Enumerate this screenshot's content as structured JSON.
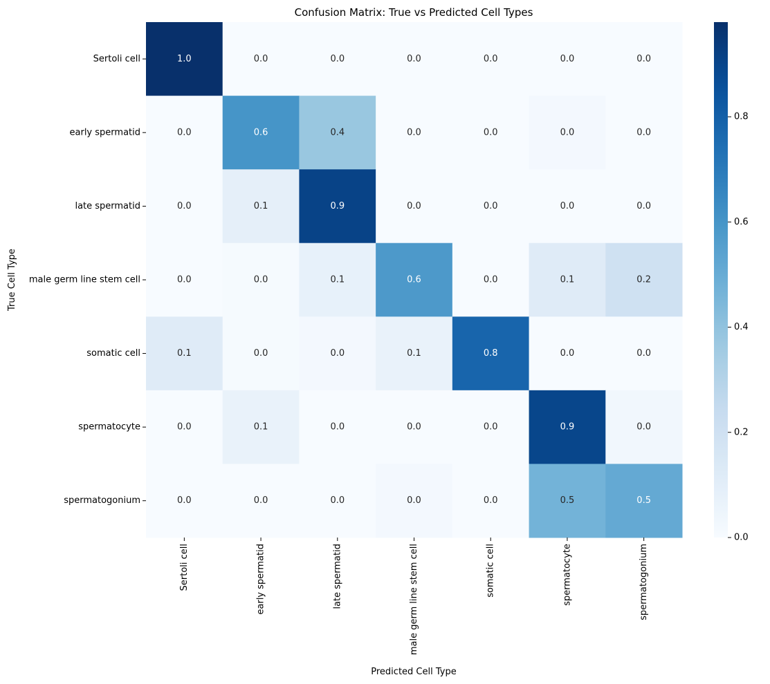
{
  "chart_data": {
    "type": "heatmap",
    "title": "Confusion Matrix: True vs Predicted Cell Types",
    "xlabel": "Predicted Cell Type",
    "ylabel": "True Cell Type",
    "row_labels": [
      "Sertoli cell",
      "early spermatid",
      "late spermatid",
      "male germ line stem cell",
      "somatic cell",
      "spermatocyte",
      "spermatogonium"
    ],
    "col_labels": [
      "Sertoli cell",
      "early spermatid",
      "late spermatid",
      "male germ line stem cell",
      "somatic cell",
      "spermatocyte",
      "spermatogonium"
    ],
    "values": [
      [
        0.98,
        0.0,
        0.0,
        0.0,
        0.0,
        0.0,
        0.0
      ],
      [
        0.0,
        0.6,
        0.38,
        0.0,
        0.0,
        0.02,
        0.0
      ],
      [
        0.0,
        0.09,
        0.91,
        0.0,
        0.0,
        0.0,
        0.0
      ],
      [
        0.0,
        0.01,
        0.08,
        0.58,
        0.0,
        0.12,
        0.2
      ],
      [
        0.12,
        0.01,
        0.02,
        0.07,
        0.78,
        0.0,
        0.0
      ],
      [
        0.0,
        0.07,
        0.0,
        0.0,
        0.0,
        0.9,
        0.03
      ],
      [
        0.0,
        0.0,
        0.0,
        0.02,
        0.0,
        0.47,
        0.51
      ]
    ],
    "annotations": [
      [
        "1.0",
        "0.0",
        "0.0",
        "0.0",
        "0.0",
        "0.0",
        "0.0"
      ],
      [
        "0.0",
        "0.6",
        "0.4",
        "0.0",
        "0.0",
        "0.0",
        "0.0"
      ],
      [
        "0.0",
        "0.1",
        "0.9",
        "0.0",
        "0.0",
        "0.0",
        "0.0"
      ],
      [
        "0.0",
        "0.0",
        "0.1",
        "0.6",
        "0.0",
        "0.1",
        "0.2"
      ],
      [
        "0.1",
        "0.0",
        "0.0",
        "0.1",
        "0.8",
        "0.0",
        "0.0"
      ],
      [
        "0.0",
        "0.1",
        "0.0",
        "0.0",
        "0.0",
        "0.9",
        "0.0"
      ],
      [
        "0.0",
        "0.0",
        "0.0",
        "0.0",
        "0.0",
        "0.5",
        "0.5"
      ]
    ],
    "colorbar": {
      "colormap": "Blues",
      "range": [
        0,
        0.98
      ],
      "ticks": [
        0.0,
        0.2,
        0.4,
        0.6,
        0.8
      ],
      "tick_labels": [
        "0.0",
        "0.2",
        "0.4",
        "0.6",
        "0.8"
      ]
    }
  }
}
